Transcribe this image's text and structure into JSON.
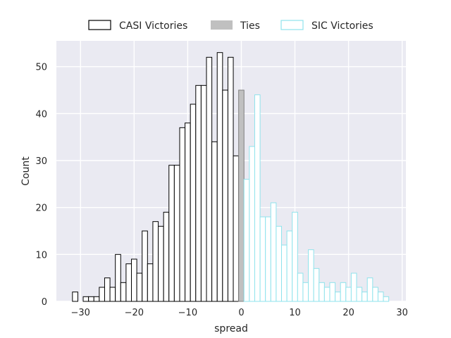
{
  "chart_data": {
    "type": "bar",
    "title": "",
    "xlabel": "spread",
    "ylabel": "Count",
    "xlim": [
      -34.5,
      30.7
    ],
    "ylim": [
      0,
      55.5
    ],
    "xticks": [
      -30,
      -20,
      -10,
      0,
      10,
      20,
      30
    ],
    "yticks": [
      0,
      10,
      20,
      30,
      40,
      50
    ],
    "grid": true,
    "legend_position": "top",
    "bin_width": 1,
    "series": [
      {
        "name": "CASI Victories",
        "color": "#000000",
        "fill": "#ffffff",
        "x": [
          -31,
          -29,
          -28,
          -27,
          -26,
          -25,
          -24,
          -23,
          -22,
          -21,
          -20,
          -19,
          -18,
          -17,
          -16,
          -15,
          -14,
          -13,
          -12,
          -11,
          -10,
          -9,
          -8,
          -7,
          -6,
          -5,
          -4,
          -3,
          -2,
          -1
        ],
        "values": [
          2,
          1,
          1,
          1,
          3,
          5,
          3,
          10,
          4,
          8,
          9,
          6,
          15,
          8,
          17,
          16,
          19,
          29,
          29,
          37,
          38,
          42,
          46,
          46,
          52,
          34,
          53,
          45,
          52,
          31
        ]
      },
      {
        "name": "Ties",
        "color": "#808080",
        "fill": "#c0c0c0",
        "x": [
          0
        ],
        "values": [
          45
        ]
      },
      {
        "name": "SIC Victories",
        "color": "#8fe3ec",
        "fill": "#ffffff",
        "x": [
          1,
          2,
          3,
          4,
          5,
          6,
          7,
          8,
          9,
          10,
          11,
          12,
          13,
          14,
          15,
          16,
          17,
          18,
          19,
          20,
          21,
          22,
          23,
          24,
          25,
          26,
          27
        ],
        "values": [
          26,
          33,
          44,
          18,
          18,
          21,
          16,
          12,
          15,
          19,
          6,
          4,
          11,
          7,
          4,
          3,
          4,
          2,
          4,
          3,
          6,
          3,
          2,
          5,
          3,
          2,
          1
        ]
      }
    ]
  }
}
